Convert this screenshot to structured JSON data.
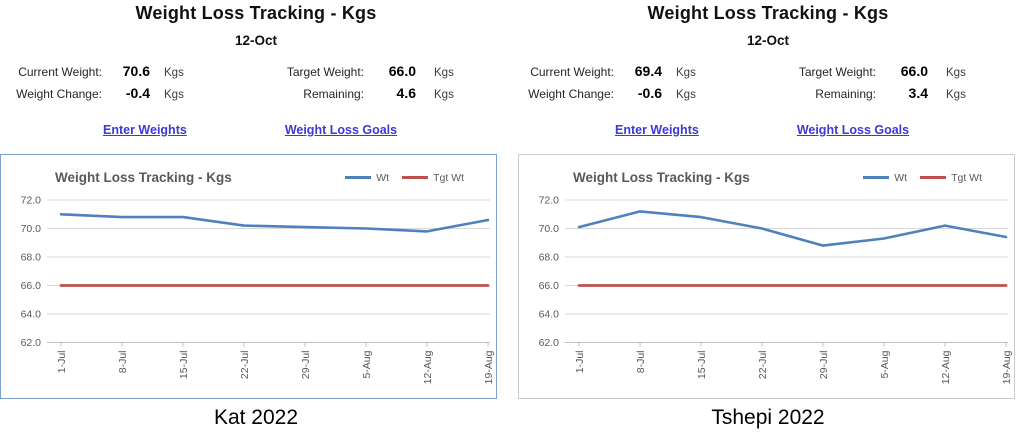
{
  "colors": {
    "link": "#3a3ad4",
    "grid": "#d9d9d9",
    "axis_line": "#c0c0c0",
    "axis_text": "#595959",
    "chart_title": "#595959"
  },
  "panels": [
    {
      "title": "Weight Loss Tracking - Kgs",
      "date": "12-Oct",
      "stats_left": [
        {
          "label": "Current Weight:",
          "value": "70.6",
          "unit": "Kgs"
        },
        {
          "label": "Weight Change:",
          "value": "-0.4",
          "unit": "Kgs"
        }
      ],
      "stats_right": [
        {
          "label": "Target Weight:",
          "value": "66.0",
          "unit": "Kgs"
        },
        {
          "label": "Remaining:",
          "value": "4.6",
          "unit": "Kgs"
        }
      ],
      "links": [
        {
          "label": "Enter Weights"
        },
        {
          "label": "Weight Loss Goals"
        }
      ],
      "caption": "Kat 2022",
      "chart_border": "#7f9fce"
    },
    {
      "title": "Weight Loss Tracking - Kgs",
      "date": "12-Oct",
      "stats_left": [
        {
          "label": "Current Weight:",
          "value": "69.4",
          "unit": "Kgs"
        },
        {
          "label": "Weight Change:",
          "value": "-0.6",
          "unit": "Kgs"
        }
      ],
      "stats_right": [
        {
          "label": "Target Weight:",
          "value": "66.0",
          "unit": "Kgs"
        },
        {
          "label": "Remaining:",
          "value": "3.4",
          "unit": "Kgs"
        }
      ],
      "links": [
        {
          "label": "Enter Weights"
        },
        {
          "label": "Weight Loss Goals"
        }
      ],
      "caption": "Tshepi 2022",
      "chart_border": "#c9ccd1"
    }
  ],
  "chart_data": [
    {
      "type": "line",
      "title": "Weight Loss Tracking - Kgs",
      "categories": [
        "1-Jul",
        "8-Jul",
        "15-Jul",
        "22-Jul",
        "29-Jul",
        "5-Aug",
        "12-Aug",
        "19-Aug"
      ],
      "series": [
        {
          "name": "Wt",
          "color": "#4f81bd",
          "values": [
            71.0,
            70.8,
            70.8,
            70.2,
            70.1,
            70.0,
            69.8,
            70.6
          ]
        },
        {
          "name": "Tgt Wt",
          "color": "#c0504d",
          "values": [
            66.0,
            66.0,
            66.0,
            66.0,
            66.0,
            66.0,
            66.0,
            66.0
          ]
        }
      ],
      "xlabel": "",
      "ylabel": "",
      "ylim": [
        62.0,
        72.0
      ],
      "yticks": [
        72,
        70,
        68,
        66,
        64,
        62
      ],
      "grid": true,
      "legend_position": "top-right"
    },
    {
      "type": "line",
      "title": "Weight Loss Tracking - Kgs",
      "categories": [
        "1-Jul",
        "8-Jul",
        "15-Jul",
        "22-Jul",
        "29-Jul",
        "5-Aug",
        "12-Aug",
        "19-Aug"
      ],
      "series": [
        {
          "name": "Wt",
          "color": "#4f81bd",
          "values": [
            70.1,
            71.2,
            70.8,
            70.0,
            68.8,
            69.3,
            70.2,
            69.4
          ]
        },
        {
          "name": "Tgt Wt",
          "color": "#c0504d",
          "values": [
            66.0,
            66.0,
            66.0,
            66.0,
            66.0,
            66.0,
            66.0,
            66.0
          ]
        }
      ],
      "xlabel": "",
      "ylabel": "",
      "ylim": [
        62.0,
        72.0
      ],
      "yticks": [
        72,
        70,
        68,
        66,
        64,
        62
      ],
      "grid": true,
      "legend_position": "top-right"
    }
  ]
}
